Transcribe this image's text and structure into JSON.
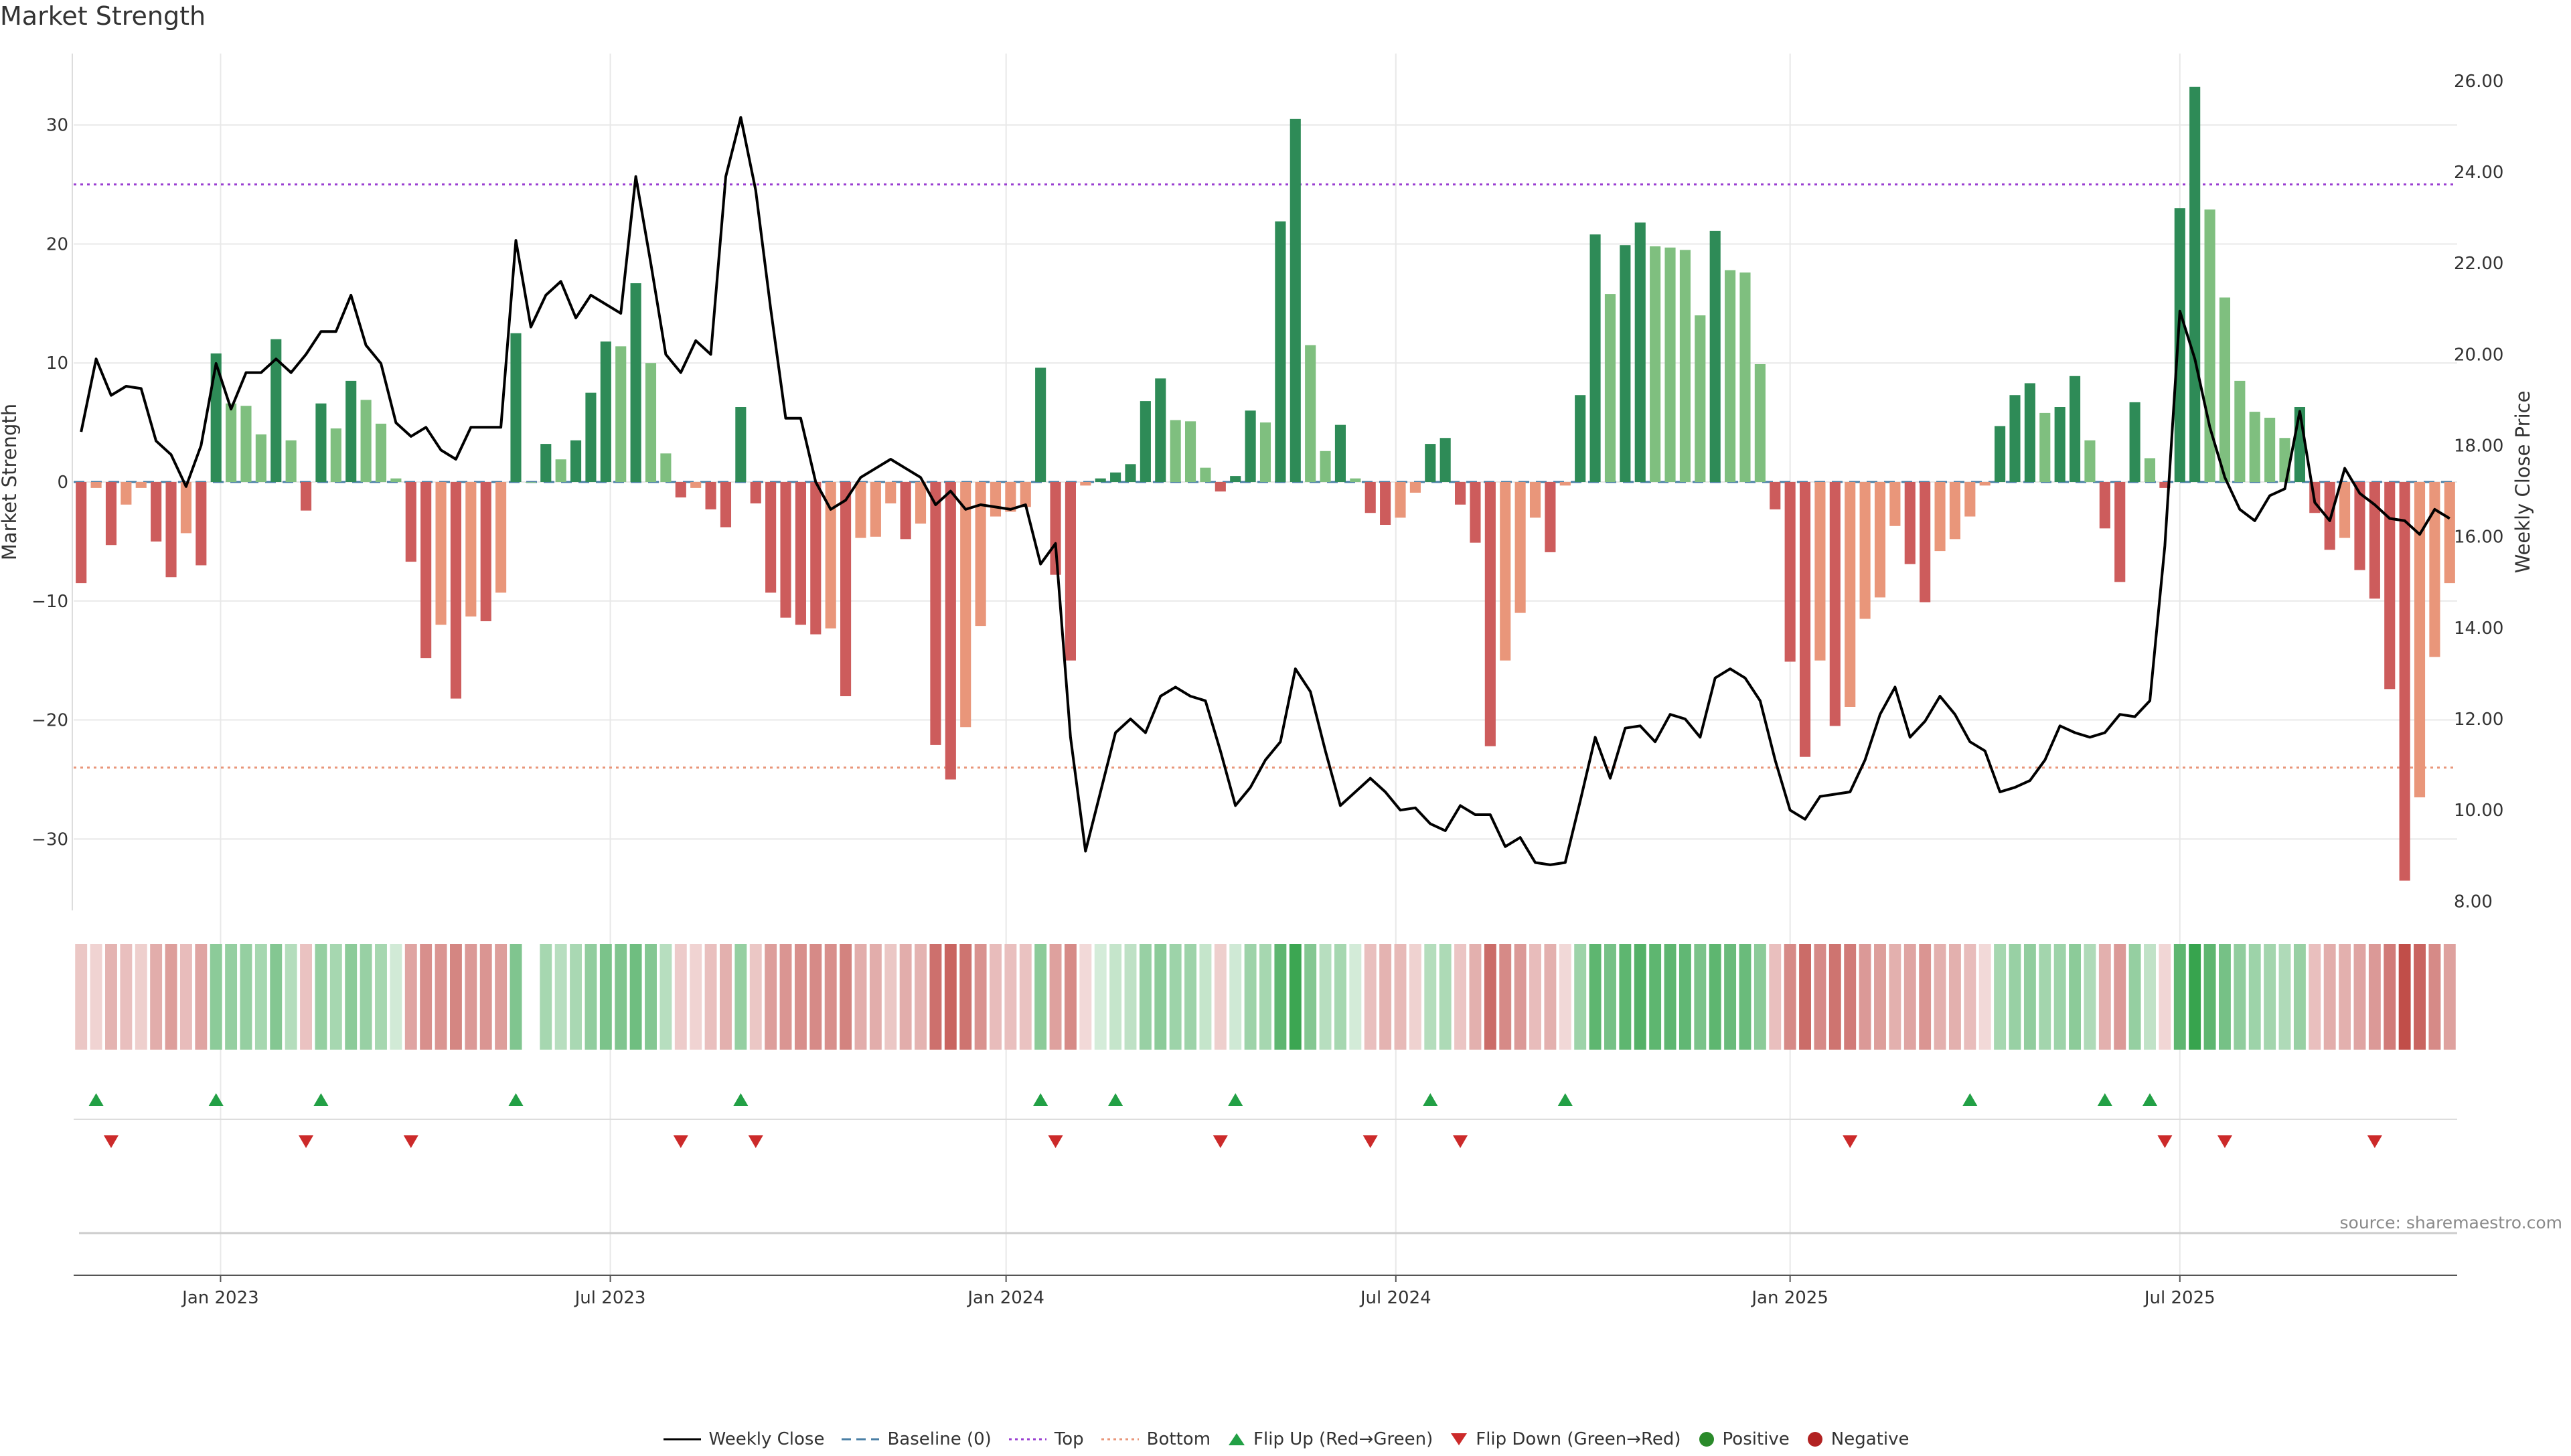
{
  "title": "Market Strength",
  "source": "source: sharemaestro.com",
  "colors": {
    "strong_pos": "#2e8b57",
    "weak_pos": "#7fbf7f",
    "strong_neg": "#cd5c5c",
    "weak_neg": "#e9967a",
    "line": "#000000",
    "top": "#9a3fd1",
    "bottom": "#e9967a",
    "baseline": "#4a7fa5",
    "flip_up": "#22a045",
    "flip_down": "#cc2a2a",
    "positive": "#2a8a2a",
    "negative": "#b22222",
    "grid": "#e8e8e8"
  },
  "legend": [
    {
      "label": "Weekly Close",
      "kind": "line-solid"
    },
    {
      "label": "Baseline (0)",
      "kind": "line-dash"
    },
    {
      "label": "Top",
      "kind": "line-dot-purple"
    },
    {
      "label": "Bottom",
      "kind": "line-dot-orange"
    },
    {
      "label": "Flip Up (Red→Green)",
      "kind": "tri-up"
    },
    {
      "label": "Flip Down (Green→Red)",
      "kind": "tri-down"
    },
    {
      "label": "Positive",
      "kind": "dot-green"
    },
    {
      "label": "Negative",
      "kind": "dot-red"
    }
  ],
  "chart_data": {
    "type": "bar",
    "title": "Market Strength",
    "ylabel": "Market Strength",
    "y2label": "Weekly Close Price",
    "ylim": [
      -36,
      36
    ],
    "y2lim": [
      7.8,
      26.6
    ],
    "y_ticks": [
      {
        "v": 30,
        "label": "30"
      },
      {
        "v": 20,
        "label": "20"
      },
      {
        "v": 10,
        "label": "10"
      },
      {
        "v": 0,
        "label": "0"
      },
      {
        "v": -10,
        "label": "−10"
      },
      {
        "v": -20,
        "label": "−20"
      },
      {
        "v": -30,
        "label": "−30"
      }
    ],
    "y2_ticks": [
      {
        "v": 26,
        "label": "26.00"
      },
      {
        "v": 24,
        "label": "24.00"
      },
      {
        "v": 22,
        "label": "22.00"
      },
      {
        "v": 20,
        "label": "20.00"
      },
      {
        "v": 18,
        "label": "18.00"
      },
      {
        "v": 16,
        "label": "16.00"
      },
      {
        "v": 14,
        "label": "14.00"
      },
      {
        "v": 12,
        "label": "12.00"
      },
      {
        "v": 10,
        "label": "10.00"
      },
      {
        "v": 8,
        "label": "8.00"
      }
    ],
    "x_ticks": [
      {
        "i": 9.3,
        "label": "Jan 2023"
      },
      {
        "i": 35.3,
        "label": "Jul 2023"
      },
      {
        "i": 61.7,
        "label": "Jan 2024"
      },
      {
        "i": 87.7,
        "label": "Jul 2024"
      },
      {
        "i": 114,
        "label": "Jan 2025"
      },
      {
        "i": 140,
        "label": "Jul 2025"
      }
    ],
    "top_level": 25,
    "bottom_level": -24,
    "baseline": 0,
    "strength": [
      -8.5,
      -0.5,
      -5.3,
      -1.9,
      -0.5,
      -5,
      -8,
      -4.3,
      -7,
      10.8,
      6.6,
      6.4,
      4,
      12,
      3.5,
      -2.4,
      6.6,
      4.5,
      8.5,
      6.9,
      4.9,
      0.3,
      -6.7,
      -14.8,
      -12,
      -18.2,
      -11.3,
      -11.7,
      -9.3,
      12.5,
      0,
      3.2,
      1.9,
      3.5,
      7.5,
      11.8,
      11.4,
      16.7,
      10,
      2.4,
      -1.3,
      -0.5,
      -2.3,
      -3.8,
      6.3,
      -1.8,
      -9.3,
      -11.4,
      -12,
      -12.8,
      -12.3,
      -18,
      -4.7,
      -4.6,
      -1.8,
      -4.8,
      -3.5,
      -22.1,
      -25,
      -20.6,
      -12.1,
      -2.9,
      -2.5,
      -2.1,
      9.6,
      -7.8,
      -15,
      -0.3,
      0.3,
      0.8,
      1.5,
      6.8,
      8.7,
      5.2,
      5.1,
      1.2,
      -0.8,
      0.5,
      6,
      5,
      21.9,
      30.5,
      11.5,
      2.6,
      4.8,
      0.3,
      -2.6,
      -3.6,
      -3,
      -0.9,
      3.2,
      3.7,
      -1.9,
      -5.1,
      -22.2,
      -15,
      -11,
      -3,
      -5.9,
      -0.3,
      7.3,
      20.8,
      15.8,
      19.9,
      21.8,
      19.8,
      19.7,
      19.5,
      14,
      21.1,
      17.8,
      17.6,
      9.9,
      -2.3,
      -15.1,
      -23.1,
      -15,
      -20.5,
      -18.9,
      -11.5,
      -9.7,
      -3.7,
      -6.9,
      -10.1,
      -5.8,
      -4.8,
      -2.9,
      -0.3,
      4.7,
      7.3,
      8.3,
      5.8,
      6.3,
      8.9,
      3.5,
      -3.9,
      -8.4,
      6.7,
      2,
      -0.5,
      23,
      33.2,
      22.9,
      15.5,
      8.5,
      5.9,
      5.4,
      3.7,
      6.3,
      -2.6,
      -5.7,
      -4.7,
      -7.4,
      -9.8,
      -17.4,
      -33.5,
      -26.5,
      -14.7,
      -8.5
    ],
    "weekly_close": [
      18.3,
      19.9,
      19.1,
      19.3,
      19.25,
      18.1,
      17.8,
      17.1,
      18,
      19.8,
      18.8,
      19.6,
      19.6,
      19.9,
      19.6,
      20,
      20.5,
      20.5,
      21.3,
      20.2,
      19.8,
      18.5,
      18.2,
      18.4,
      17.9,
      17.7,
      18.4,
      18.4,
      18.4,
      22.5,
      20.6,
      21.3,
      21.6,
      20.8,
      21.3,
      21.1,
      20.9,
      23.9,
      22,
      20,
      19.6,
      20.3,
      20,
      23.9,
      25.2,
      23.6,
      21,
      18.6,
      18.6,
      17.2,
      16.6,
      16.8,
      17.3,
      17.5,
      17.7,
      17.5,
      17.3,
      16.7,
      17,
      16.6,
      16.7,
      16.65,
      16.6,
      16.7,
      15.4,
      15.85,
      11.6,
      9.1,
      10.4,
      11.7,
      12,
      11.7,
      12.5,
      12.7,
      12.5,
      12.4,
      11.3,
      10.1,
      10.5,
      11.1,
      11.5,
      13.1,
      12.6,
      11.3,
      10.1,
      10.4,
      10.7,
      10.4,
      10,
      10.05,
      9.7,
      9.55,
      10.1,
      9.9,
      9.9,
      9.2,
      9.4,
      8.85,
      8.8,
      8.85,
      10.2,
      11.6,
      10.7,
      11.8,
      11.85,
      11.5,
      12.1,
      12,
      11.6,
      12.9,
      13.1,
      12.9,
      12.4,
      11.1,
      10,
      9.8,
      10.3,
      10.35,
      10.4,
      11.1,
      12.1,
      12.7,
      11.6,
      11.95,
      12.5,
      12.1,
      11.5,
      11.3,
      10.4,
      10.5,
      10.65,
      11.1,
      11.85,
      11.7,
      11.6,
      11.7,
      12.1,
      12.05,
      12.4,
      15.8,
      20.95,
      19.9,
      18.4,
      17.3,
      16.6,
      16.35,
      16.9,
      17.05,
      18.75,
      16.75,
      16.35,
      17.5,
      16.95,
      16.7,
      16.4,
      16.35,
      16.05,
      16.6,
      16.4
    ],
    "heat": [
      0.15,
      0.07,
      0.28,
      0.2,
      0.1,
      0.32,
      0.42,
      0.22,
      0.38,
      0.45,
      0.4,
      0.4,
      0.3,
      0.5,
      0.22,
      0.18,
      0.4,
      0.3,
      0.45,
      0.38,
      0.3,
      0.05,
      0.38,
      0.52,
      0.48,
      0.58,
      0.45,
      0.48,
      0.42,
      0.52,
      0.02,
      0.3,
      0.2,
      0.28,
      0.42,
      0.55,
      0.52,
      0.62,
      0.5,
      0.2,
      0.12,
      0.07,
      0.2,
      0.3,
      0.4,
      0.15,
      0.42,
      0.48,
      0.52,
      0.55,
      0.52,
      0.6,
      0.32,
      0.32,
      0.15,
      0.32,
      0.28,
      0.72,
      0.8,
      0.7,
      0.5,
      0.22,
      0.2,
      0.18,
      0.45,
      0.4,
      0.55,
      0.03,
      0.03,
      0.12,
      0.16,
      0.38,
      0.45,
      0.35,
      0.35,
      0.12,
      0.1,
      0.06,
      0.35,
      0.3,
      0.72,
      0.92,
      0.5,
      0.2,
      0.3,
      0.04,
      0.2,
      0.28,
      0.24,
      0.08,
      0.22,
      0.26,
      0.16,
      0.3,
      0.75,
      0.55,
      0.45,
      0.22,
      0.3,
      0.04,
      0.35,
      0.72,
      0.58,
      0.72,
      0.78,
      0.72,
      0.72,
      0.7,
      0.55,
      0.72,
      0.65,
      0.65,
      0.45,
      0.2,
      0.55,
      0.75,
      0.55,
      0.7,
      0.65,
      0.45,
      0.42,
      0.3,
      0.38,
      0.48,
      0.3,
      0.3,
      0.22,
      0.03,
      0.3,
      0.38,
      0.42,
      0.32,
      0.35,
      0.45,
      0.25,
      0.3,
      0.45,
      0.4,
      0.15,
      0.05,
      0.72,
      0.95,
      0.72,
      0.58,
      0.42,
      0.35,
      0.32,
      0.25,
      0.38,
      0.2,
      0.32,
      0.3,
      0.38,
      0.45,
      0.65,
      0.95,
      0.8,
      0.55,
      0.4
    ],
    "flip_up_idx": [
      1,
      9,
      16,
      29,
      44,
      64,
      69,
      77,
      90,
      99,
      126,
      135,
      138
    ],
    "flip_down_idx": [
      2,
      15,
      22,
      40,
      45,
      65,
      76,
      86,
      92,
      118,
      139,
      143,
      153
    ]
  }
}
